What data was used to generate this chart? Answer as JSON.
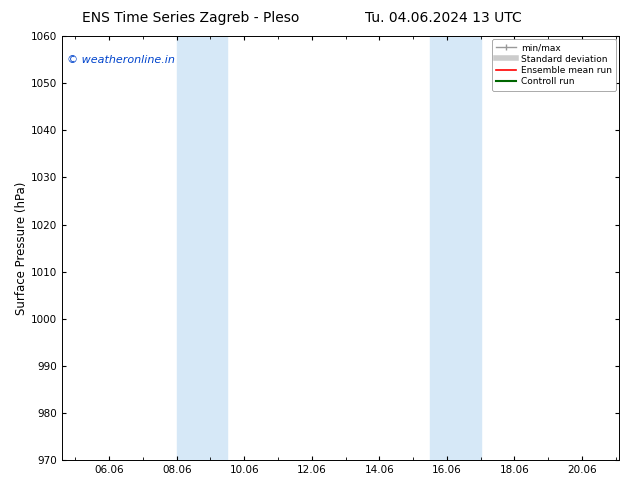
{
  "title_left": "ENS Time Series Zagreb - Pleso",
  "title_right": "Tu. 04.06.2024 13 UTC",
  "ylabel": "Surface Pressure (hPa)",
  "ylim": [
    970,
    1060
  ],
  "yticks": [
    970,
    980,
    990,
    1000,
    1010,
    1020,
    1030,
    1040,
    1050,
    1060
  ],
  "xlim_start": 4.6,
  "xlim_end": 21.1,
  "xtick_labels": [
    "06.06",
    "08.06",
    "10.06",
    "12.06",
    "14.06",
    "16.06",
    "18.06",
    "20.06"
  ],
  "xtick_positions": [
    6,
    8,
    10,
    12,
    14,
    16,
    18,
    20
  ],
  "shaded_bands": [
    {
      "x_start": 8.0,
      "x_end": 9.5
    },
    {
      "x_start": 15.5,
      "x_end": 17.0
    }
  ],
  "shade_color": "#d6e8f7",
  "watermark_text": "© weatheronline.in",
  "watermark_color": "#0044cc",
  "legend_items": [
    {
      "label": "min/max",
      "color": "#999999",
      "lw": 1.0
    },
    {
      "label": "Standard deviation",
      "color": "#cccccc",
      "lw": 4.0
    },
    {
      "label": "Ensemble mean run",
      "color": "#ff0000",
      "lw": 1.2
    },
    {
      "label": "Controll run",
      "color": "#006600",
      "lw": 1.5
    }
  ],
  "background_color": "#ffffff",
  "title_fontsize": 10,
  "tick_fontsize": 7.5,
  "ylabel_fontsize": 8.5,
  "watermark_fontsize": 8
}
